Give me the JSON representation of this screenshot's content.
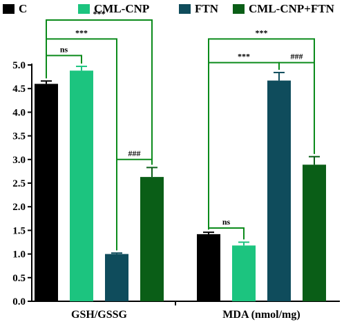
{
  "chart_data": {
    "type": "bar",
    "categories": [
      "GSH/GSSG",
      "MDA (nmol/mg)"
    ],
    "series": [
      {
        "name": "C",
        "color": "#000000",
        "values": [
          4.6,
          1.42
        ],
        "errors": [
          0.06,
          0.04
        ]
      },
      {
        "name": "CML-CNP",
        "color": "#1cc47f",
        "values": [
          4.88,
          1.18
        ],
        "errors": [
          0.09,
          0.07
        ]
      },
      {
        "name": "FTN",
        "color": "#0f4c5c",
        "values": [
          1.0,
          4.67
        ],
        "errors": [
          0.02,
          0.17
        ]
      },
      {
        "name": "CML-CNP+FTN",
        "color": "#0a5e17",
        "values": [
          2.63,
          2.89
        ],
        "errors": [
          0.2,
          0.17
        ]
      }
    ],
    "ylim": [
      0,
      5.0
    ],
    "yticks": [
      "0.0",
      "0.5",
      "1.0",
      "1.5",
      "2.0",
      "2.5",
      "3.0",
      "3.5",
      "4.0",
      "4.5",
      "5.0"
    ],
    "legend_position": "top",
    "grid": false,
    "annotations": [
      {
        "group": 0,
        "from": 0,
        "to": 1,
        "label": "ns",
        "level": 5.2,
        "color": "#0a8a1a"
      },
      {
        "group": 0,
        "from": 0,
        "to": 2,
        "label": "***",
        "level": 5.55,
        "color": "#0a8a1a"
      },
      {
        "group": 0,
        "from": 0,
        "to": 3,
        "label": "***",
        "level": 5.95,
        "color": "#0a8a1a"
      },
      {
        "group": 0,
        "from": 2,
        "to": 3,
        "label": "###",
        "level": 3.0,
        "color": "#0a8a1a"
      },
      {
        "group": 1,
        "from": 0,
        "to": 1,
        "label": "ns",
        "level": 1.55,
        "color": "#0a8a1a"
      },
      {
        "group": 1,
        "from": 0,
        "to": 3,
        "label": "***",
        "level": 5.55,
        "color": "#0a8a1a"
      },
      {
        "group": 1,
        "from": 0,
        "to": 2,
        "label": "***",
        "level": 5.05,
        "color": "#0a8a1a"
      },
      {
        "group": 1,
        "from": 2,
        "to": 3,
        "label": "###",
        "level": 5.05,
        "color": "#0a8a1a"
      }
    ]
  }
}
